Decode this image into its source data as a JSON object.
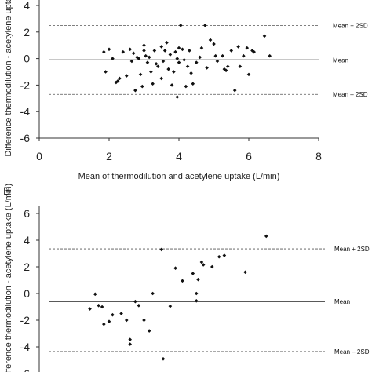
{
  "chart_data": [
    {
      "type": "scatter",
      "panel_label": "",
      "xlabel": "Mean of thermodilution and acetylene uptake (L/min)",
      "ylabel": "Difference thermodilution - acetylene uptake",
      "xlim": [
        0,
        8
      ],
      "ylim": [
        -6,
        4
      ],
      "xticks": [
        "0",
        "2",
        "4",
        "6",
        "8"
      ],
      "yticks": [
        "4",
        "2",
        "0",
        "-2",
        "-4",
        "-6"
      ],
      "reference_lines": [
        {
          "label": "Mean + 2SD",
          "y": 2.5,
          "style": "dashed"
        },
        {
          "label": "Mean",
          "y": -0.1,
          "style": "solid"
        },
        {
          "label": "Mean – 2SD",
          "y": -2.7,
          "style": "dashed"
        }
      ],
      "points": [
        [
          1.85,
          0.5
        ],
        [
          2.0,
          0.7
        ],
        [
          1.9,
          -1.0
        ],
        [
          2.1,
          0.0
        ],
        [
          2.2,
          -1.8
        ],
        [
          2.25,
          -1.7
        ],
        [
          2.3,
          -1.5
        ],
        [
          2.4,
          0.5
        ],
        [
          2.5,
          -1.3
        ],
        [
          2.6,
          0.7
        ],
        [
          2.65,
          -0.2
        ],
        [
          2.7,
          0.4
        ],
        [
          2.75,
          -2.4
        ],
        [
          2.8,
          0.1
        ],
        [
          2.85,
          0.0
        ],
        [
          2.9,
          -1.2
        ],
        [
          2.95,
          -2.1
        ],
        [
          3.0,
          0.6
        ],
        [
          3.0,
          1.0
        ],
        [
          3.05,
          0.2
        ],
        [
          3.1,
          -0.3
        ],
        [
          3.15,
          0.1
        ],
        [
          3.2,
          -1.0
        ],
        [
          3.25,
          -1.9
        ],
        [
          3.3,
          0.6
        ],
        [
          3.35,
          -0.4
        ],
        [
          3.4,
          -0.6
        ],
        [
          3.5,
          0.9
        ],
        [
          3.5,
          -1.5
        ],
        [
          3.55,
          -0.2
        ],
        [
          3.6,
          0.6
        ],
        [
          3.65,
          1.2
        ],
        [
          3.7,
          -0.8
        ],
        [
          3.75,
          0.3
        ],
        [
          3.8,
          -2.0
        ],
        [
          3.85,
          -1.0
        ],
        [
          3.9,
          0.5
        ],
        [
          3.95,
          0.0
        ],
        [
          3.95,
          -2.9
        ],
        [
          4.0,
          0.8
        ],
        [
          4.0,
          -0.3
        ],
        [
          4.05,
          2.5
        ],
        [
          4.1,
          0.7
        ],
        [
          4.15,
          -0.1
        ],
        [
          4.2,
          -2.1
        ],
        [
          4.25,
          -0.6
        ],
        [
          4.3,
          0.6
        ],
        [
          4.35,
          -1.1
        ],
        [
          4.4,
          -1.9
        ],
        [
          4.5,
          -0.3
        ],
        [
          4.6,
          0.1
        ],
        [
          4.65,
          0.8
        ],
        [
          4.75,
          2.5
        ],
        [
          4.8,
          -0.7
        ],
        [
          4.9,
          1.4
        ],
        [
          5.0,
          1.1
        ],
        [
          5.05,
          0.2
        ],
        [
          5.1,
          -0.2
        ],
        [
          5.25,
          0.2
        ],
        [
          5.3,
          -0.8
        ],
        [
          5.35,
          -0.9
        ],
        [
          5.4,
          -0.6
        ],
        [
          5.5,
          0.6
        ],
        [
          5.6,
          -2.4
        ],
        [
          5.7,
          0.9
        ],
        [
          5.75,
          -0.6
        ],
        [
          5.85,
          0.2
        ],
        [
          5.95,
          0.8
        ],
        [
          6.0,
          -1.2
        ],
        [
          6.1,
          0.6
        ],
        [
          6.15,
          0.5
        ],
        [
          6.45,
          1.7
        ],
        [
          6.6,
          0.2
        ]
      ]
    },
    {
      "type": "scatter",
      "panel_label": "B",
      "xlabel": "",
      "ylabel": "Difference thermodilution - acetylene uptake (L/min)",
      "xlim": [
        0,
        8
      ],
      "ylim": [
        -6,
        6
      ],
      "xticks": [],
      "yticks": [
        "6",
        "4",
        "2",
        "0",
        "-2",
        "-4",
        "-6"
      ],
      "reference_lines": [
        {
          "label": "Mean + 2SD",
          "y": 3.35,
          "style": "dashed"
        },
        {
          "label": "Mean",
          "y": -0.6,
          "style": "solid"
        },
        {
          "label": "Mean – 2SD",
          "y": -4.35,
          "style": "dashed"
        }
      ],
      "points": [
        [
          1.45,
          -1.15
        ],
        [
          1.6,
          -0.05
        ],
        [
          1.7,
          -0.9
        ],
        [
          1.8,
          -1.0
        ],
        [
          1.85,
          -2.3
        ],
        [
          2.0,
          -2.1
        ],
        [
          2.1,
          -1.6
        ],
        [
          2.35,
          -1.5
        ],
        [
          2.5,
          -2.0
        ],
        [
          2.6,
          -3.8
        ],
        [
          2.6,
          -3.45
        ],
        [
          2.75,
          -0.6
        ],
        [
          2.85,
          -0.9
        ],
        [
          3.0,
          -2.0
        ],
        [
          3.15,
          -2.8
        ],
        [
          3.25,
          0.0
        ],
        [
          3.5,
          3.3
        ],
        [
          3.55,
          -4.9
        ],
        [
          3.75,
          -0.95
        ],
        [
          3.9,
          1.9
        ],
        [
          4.1,
          0.95
        ],
        [
          4.4,
          1.5
        ],
        [
          4.5,
          0.0
        ],
        [
          4.5,
          -0.55
        ],
        [
          4.55,
          1.05
        ],
        [
          4.65,
          2.35
        ],
        [
          4.7,
          2.15
        ],
        [
          4.95,
          2.0
        ],
        [
          5.15,
          2.75
        ],
        [
          5.3,
          2.85
        ],
        [
          5.9,
          1.6
        ],
        [
          6.5,
          4.3
        ]
      ]
    }
  ]
}
